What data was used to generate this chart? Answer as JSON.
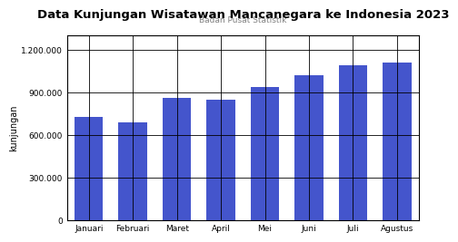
{
  "title": "Data Kunjungan Wisatawan Mancanegara ke Indonesia 2023",
  "subtitle": "Badan Pusat Statistik",
  "categories": [
    "Januari",
    "Februari",
    "Maret",
    "April",
    "Mei",
    "Juni",
    "Juli",
    "Agustus"
  ],
  "values": [
    730000,
    690000,
    860000,
    850000,
    940000,
    1020000,
    1090000,
    1110000
  ],
  "bar_color": "#4455cc",
  "ylabel": "kunjungan",
  "ylim": [
    0,
    1300000
  ],
  "yticks": [
    0,
    300000,
    600000,
    900000,
    1200000
  ],
  "title_fontsize": 9.5,
  "subtitle_fontsize": 6.5,
  "ylabel_fontsize": 7,
  "tick_fontsize": 6.5,
  "background_color": "#ffffff"
}
